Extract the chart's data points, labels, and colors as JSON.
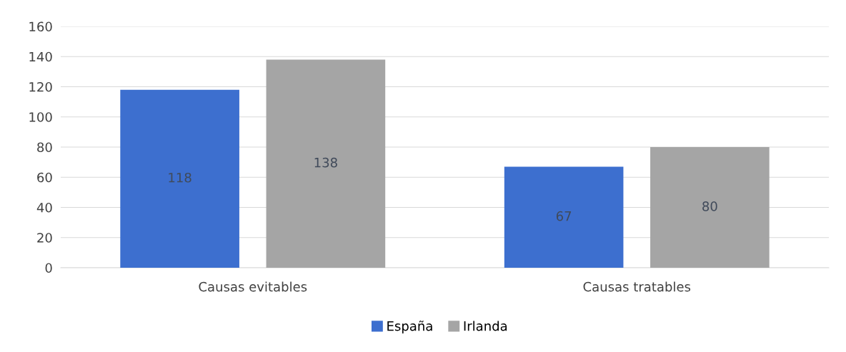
{
  "chart_data": {
    "type": "bar",
    "categories": [
      "Causas evitables",
      "Causas tratables"
    ],
    "series": [
      {
        "name": "España",
        "color": "#3d6fcf",
        "values": [
          118,
          67
        ]
      },
      {
        "name": "Irlanda",
        "color": "#a5a5a5",
        "values": [
          138,
          80
        ]
      }
    ],
    "ylim": [
      0,
      160
    ],
    "yticks": [
      0,
      20,
      40,
      60,
      80,
      100,
      120,
      140,
      160
    ],
    "grid": "y",
    "legend": "bottom",
    "data_labels": true
  }
}
